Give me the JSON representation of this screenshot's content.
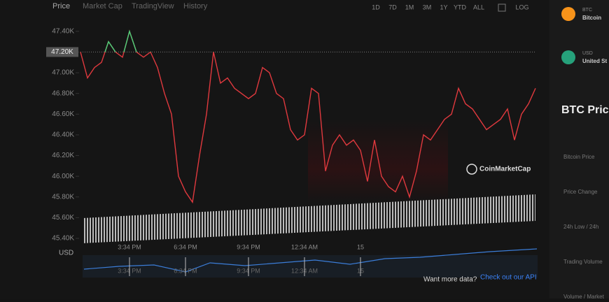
{
  "tabs": [
    "Price",
    "Market Cap",
    "TradingView",
    "History"
  ],
  "ranges": [
    "1D",
    "7D",
    "1M",
    "3M",
    "1Y",
    "YTD",
    "ALL",
    "LOG"
  ],
  "currency": "USD",
  "footer": {
    "prompt": "Want more data?",
    "link": "Check out our API"
  },
  "watermark": "CoinMarketCap",
  "sidebar": {
    "assets": [
      {
        "symbol": "BTC",
        "name": "Bitcoin"
      },
      {
        "symbol": "USD",
        "name": "United St"
      }
    ],
    "title": "BTC Price",
    "rows": [
      "Bitcoin Price",
      "Price Change",
      "24h Low / 24h",
      "Trading Volume",
      "Volume / Market"
    ]
  },
  "chart_data": {
    "type": "line",
    "categories": [
      null,
      null,
      null,
      null,
      null,
      null,
      null,
      "3:34 PM",
      null,
      null,
      null,
      null,
      null,
      null,
      null,
      "6:34 PM",
      null,
      null,
      null,
      null,
      null,
      null,
      null,
      null,
      "9:34 PM",
      null,
      null,
      null,
      null,
      null,
      null,
      null,
      "12:34 AM",
      null,
      null,
      null,
      null,
      null,
      null,
      null,
      "15",
      null,
      null,
      null,
      null,
      null,
      null,
      null,
      null,
      null,
      null,
      null,
      null,
      null,
      null,
      null,
      null,
      null,
      null,
      null,
      null,
      null,
      null,
      null,
      null,
      null
    ],
    "values": [
      47200,
      46950,
      47050,
      47100,
      47300,
      47200,
      47150,
      47400,
      47200,
      47150,
      47200,
      47050,
      46800,
      46600,
      46000,
      45850,
      45750,
      46200,
      46600,
      47200,
      46900,
      46950,
      46850,
      46800,
      46750,
      46800,
      47050,
      47000,
      46800,
      46750,
      46450,
      46350,
      46400,
      46850,
      46800,
      46050,
      46300,
      46400,
      46300,
      46350,
      46250,
      45950,
      46350,
      46000,
      45900,
      45850,
      46000,
      45800,
      46050,
      46400,
      46350,
      46450,
      46550,
      46600,
      46850,
      46700,
      46650,
      46550,
      46450,
      46500,
      46550,
      46650,
      46350,
      46600,
      46700,
      46850
    ],
    "color": "#e0393e",
    "color_above_reference": "#4bd17a",
    "reference": {
      "value": 47200,
      "label": "47.20K"
    },
    "ylim": [
      45400,
      47500
    ],
    "yticks": [
      {
        "value": 45400,
        "label": "45.40K"
      },
      {
        "value": 45600,
        "label": "45.60K"
      },
      {
        "value": 45800,
        "label": "45.80K"
      },
      {
        "value": 46000,
        "label": "46.00K"
      },
      {
        "value": 46200,
        "label": "46.20K"
      },
      {
        "value": 46400,
        "label": "46.40K"
      },
      {
        "value": 46600,
        "label": "46.60K"
      },
      {
        "value": 46800,
        "label": "46.80K"
      },
      {
        "value": 47000,
        "label": "47.00K"
      },
      {
        "value": 47200,
        "label": "47.20K"
      },
      {
        "value": 47400,
        "label": "47.40K"
      }
    ]
  }
}
